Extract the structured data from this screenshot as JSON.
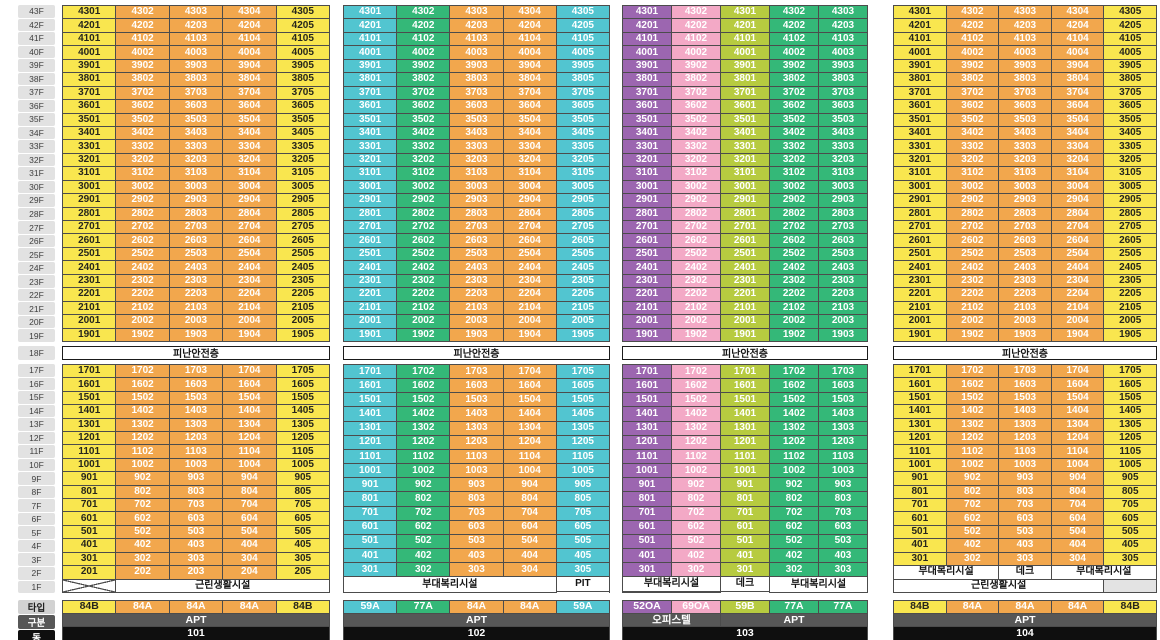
{
  "labels": {
    "refuge": "피난안전층"
  },
  "floor_axis": {
    "upper": [
      "43F",
      "42F",
      "41F",
      "40F",
      "39F",
      "38F",
      "37F",
      "36F",
      "35F",
      "34F",
      "33F",
      "32F",
      "31F",
      "30F",
      "29F",
      "28F",
      "27F",
      "26F",
      "25F",
      "24F",
      "23F",
      "22F",
      "21F",
      "20F",
      "19F"
    ],
    "refuge": "18F",
    "lower": [
      "17F",
      "16F",
      "15F",
      "14F",
      "13F",
      "12F",
      "11F",
      "10F",
      "9F",
      "8F",
      "7F",
      "6F",
      "5F",
      "4F",
      "3F",
      "2F",
      "1F"
    ],
    "legend": [
      "타입",
      "구분",
      "동"
    ]
  },
  "palette": {
    "yellow": {
      "bg": "#f9e64f",
      "fg": "#26261c"
    },
    "orange": {
      "bg": "#f2a74d",
      "fg": "#ffffff"
    },
    "teal": {
      "bg": "#52c5d0",
      "fg": "#ffffff"
    },
    "green": {
      "bg": "#34b878",
      "fg": "#ffffff"
    },
    "purple": {
      "bg": "#9c66b0",
      "fg": "#ffffff"
    },
    "pink": {
      "bg": "#f3a9c6",
      "fg": "#ffffff"
    },
    "lime": {
      "bg": "#b7cb40",
      "fg": "#ffffff"
    },
    "gubunBg": "#575757",
    "dongBg": "#0f0f0f"
  },
  "shared": {
    "rows_upper_std": [
      [
        "4301",
        "4302",
        "4303",
        "4304",
        "4305"
      ],
      [
        "4201",
        "4202",
        "4203",
        "4204",
        "4205"
      ],
      [
        "4101",
        "4102",
        "4103",
        "4104",
        "4105"
      ],
      [
        "4001",
        "4002",
        "4003",
        "4004",
        "4005"
      ],
      [
        "3901",
        "3902",
        "3903",
        "3904",
        "3905"
      ],
      [
        "3801",
        "3802",
        "3803",
        "3804",
        "3805"
      ],
      [
        "3701",
        "3702",
        "3703",
        "3704",
        "3705"
      ],
      [
        "3601",
        "3602",
        "3603",
        "3604",
        "3605"
      ],
      [
        "3501",
        "3502",
        "3503",
        "3504",
        "3505"
      ],
      [
        "3401",
        "3402",
        "3403",
        "3404",
        "3405"
      ],
      [
        "3301",
        "3302",
        "3303",
        "3304",
        "3305"
      ],
      [
        "3201",
        "3202",
        "3203",
        "3204",
        "3205"
      ],
      [
        "3101",
        "3102",
        "3103",
        "3104",
        "3105"
      ],
      [
        "3001",
        "3002",
        "3003",
        "3004",
        "3005"
      ],
      [
        "2901",
        "2902",
        "2903",
        "2904",
        "2905"
      ],
      [
        "2801",
        "2802",
        "2803",
        "2804",
        "2805"
      ],
      [
        "2701",
        "2702",
        "2703",
        "2704",
        "2705"
      ],
      [
        "2601",
        "2602",
        "2603",
        "2604",
        "2605"
      ],
      [
        "2501",
        "2502",
        "2503",
        "2504",
        "2505"
      ],
      [
        "2401",
        "2402",
        "2403",
        "2404",
        "2405"
      ],
      [
        "2301",
        "2302",
        "2303",
        "2304",
        "2305"
      ],
      [
        "2201",
        "2202",
        "2203",
        "2204",
        "2205"
      ],
      [
        "2101",
        "2102",
        "2103",
        "2104",
        "2105"
      ],
      [
        "2001",
        "2002",
        "2003",
        "2004",
        "2005"
      ],
      [
        "1901",
        "1902",
        "1903",
        "1904",
        "1905"
      ]
    ],
    "rows_lower_std": [
      [
        "1701",
        "1702",
        "1703",
        "1704",
        "1705"
      ],
      [
        "1601",
        "1602",
        "1603",
        "1604",
        "1605"
      ],
      [
        "1501",
        "1502",
        "1503",
        "1504",
        "1505"
      ],
      [
        "1401",
        "1402",
        "1403",
        "1404",
        "1405"
      ],
      [
        "1301",
        "1302",
        "1303",
        "1304",
        "1305"
      ],
      [
        "1201",
        "1202",
        "1203",
        "1204",
        "1205"
      ],
      [
        "1101",
        "1102",
        "1103",
        "1104",
        "1105"
      ],
      [
        "1001",
        "1002",
        "1003",
        "1004",
        "1005"
      ],
      [
        "901",
        "902",
        "903",
        "904",
        "905"
      ],
      [
        "801",
        "802",
        "803",
        "804",
        "805"
      ],
      [
        "701",
        "702",
        "703",
        "704",
        "705"
      ],
      [
        "601",
        "602",
        "603",
        "604",
        "605"
      ],
      [
        "501",
        "502",
        "503",
        "504",
        "505"
      ],
      [
        "401",
        "402",
        "403",
        "404",
        "405"
      ],
      [
        "301",
        "302",
        "303",
        "304",
        "305"
      ],
      [
        "201",
        "202",
        "203",
        "204",
        "205"
      ]
    ],
    "rows_upper_103": [
      [
        "4301",
        "4302",
        "4301",
        "4302",
        "4303"
      ],
      [
        "4201",
        "4202",
        "4201",
        "4202",
        "4203"
      ],
      [
        "4101",
        "4102",
        "4101",
        "4102",
        "4103"
      ],
      [
        "4001",
        "4002",
        "4001",
        "4002",
        "4003"
      ],
      [
        "3901",
        "3902",
        "3901",
        "3902",
        "3903"
      ],
      [
        "3801",
        "3802",
        "3801",
        "3802",
        "3803"
      ],
      [
        "3701",
        "3702",
        "3701",
        "3702",
        "3703"
      ],
      [
        "3601",
        "3602",
        "3601",
        "3602",
        "3603"
      ],
      [
        "3501",
        "3502",
        "3501",
        "3502",
        "3503"
      ],
      [
        "3401",
        "3402",
        "3401",
        "3402",
        "3403"
      ],
      [
        "3301",
        "3302",
        "3301",
        "3302",
        "3303"
      ],
      [
        "3201",
        "3202",
        "3201",
        "3202",
        "3203"
      ],
      [
        "3101",
        "3102",
        "3101",
        "3102",
        "3103"
      ],
      [
        "3001",
        "3002",
        "3001",
        "3002",
        "3003"
      ],
      [
        "2901",
        "2902",
        "2901",
        "2902",
        "2903"
      ],
      [
        "2801",
        "2802",
        "2801",
        "2802",
        "2803"
      ],
      [
        "2701",
        "2702",
        "2701",
        "2702",
        "2703"
      ],
      [
        "2601",
        "2602",
        "2601",
        "2602",
        "2603"
      ],
      [
        "2501",
        "2502",
        "2501",
        "2502",
        "2503"
      ],
      [
        "2401",
        "2402",
        "2401",
        "2402",
        "2403"
      ],
      [
        "2301",
        "2302",
        "2301",
        "2302",
        "2303"
      ],
      [
        "2201",
        "2202",
        "2201",
        "2202",
        "2203"
      ],
      [
        "2101",
        "2102",
        "2101",
        "2102",
        "2103"
      ],
      [
        "2001",
        "2002",
        "2001",
        "2002",
        "2003"
      ],
      [
        "1901",
        "1902",
        "1901",
        "1902",
        "1903"
      ]
    ],
    "rows_lower_103": [
      [
        "1701",
        "1702",
        "1701",
        "1702",
        "1703"
      ],
      [
        "1601",
        "1602",
        "1601",
        "1602",
        "1603"
      ],
      [
        "1501",
        "1502",
        "1501",
        "1502",
        "1503"
      ],
      [
        "1401",
        "1402",
        "1401",
        "1402",
        "1403"
      ],
      [
        "1301",
        "1302",
        "1301",
        "1302",
        "1303"
      ],
      [
        "1201",
        "1202",
        "1201",
        "1202",
        "1203"
      ],
      [
        "1101",
        "1102",
        "1101",
        "1102",
        "1103"
      ],
      [
        "1001",
        "1002",
        "1001",
        "1002",
        "1003"
      ],
      [
        "901",
        "902",
        "901",
        "902",
        "903"
      ],
      [
        "801",
        "802",
        "801",
        "802",
        "803"
      ],
      [
        "701",
        "702",
        "701",
        "702",
        "703"
      ],
      [
        "601",
        "602",
        "601",
        "602",
        "603"
      ],
      [
        "501",
        "502",
        "501",
        "502",
        "503"
      ],
      [
        "401",
        "402",
        "401",
        "402",
        "403"
      ],
      [
        "301",
        "302",
        "301",
        "302",
        "303"
      ]
    ]
  },
  "buildings": [
    {
      "dong": "101",
      "types": [
        "84B",
        "84A",
        "84A",
        "84A",
        "84B"
      ],
      "category_row": [
        {
          "label": "APT",
          "span": 5
        }
      ],
      "cols": [
        "yellow",
        "orange",
        "orange",
        "orange",
        "yellow"
      ],
      "upper_ref": "rows_upper_std",
      "lower_ref": "rows_lower_std",
      "lower_take": 16,
      "bottom": [
        [
          {
            "kind": "x",
            "span": 1
          },
          {
            "kind": "label",
            "text": "근린생활시설",
            "span": 4
          }
        ]
      ]
    },
    {
      "dong": "102",
      "types": [
        "59A",
        "77A",
        "84A",
        "84A",
        "59A"
      ],
      "category_row": [
        {
          "label": "APT",
          "span": 5
        }
      ],
      "cols": [
        "teal",
        "green",
        "orange",
        "orange",
        "teal"
      ],
      "upper_ref": "rows_upper_std",
      "lower_ref": "rows_lower_std",
      "lower_take": 15,
      "bottom": [
        [
          {
            "kind": "label",
            "text": "부대복리시설",
            "span": 4,
            "rowspan": 2
          },
          {
            "kind": "label",
            "text": "PIT",
            "span": 1
          }
        ],
        [
          {
            "kind": "x",
            "span": 1
          }
        ]
      ]
    },
    {
      "dong": "103",
      "types": [
        "52OA",
        "69OA",
        "59B",
        "77A",
        "77A"
      ],
      "category_row": [
        {
          "label": "오피스텔",
          "span": 2
        },
        {
          "label": "APT",
          "span": 3
        }
      ],
      "cols": [
        "purple",
        "pink",
        "lime",
        "green",
        "green"
      ],
      "upper_ref": "rows_upper_103",
      "lower_ref": "rows_lower_103",
      "lower_take": 15,
      "bottom": [
        [
          {
            "kind": "label",
            "text": "부대복리시설",
            "span": 2
          },
          {
            "kind": "label",
            "text": "데크",
            "span": 1
          },
          {
            "kind": "label",
            "text": "부대복리시설",
            "span": 2,
            "rowspan": 2
          }
        ],
        [
          {
            "kind": "gray",
            "span": 1
          },
          {
            "kind": "gray",
            "span": 1
          },
          {
            "kind": "x",
            "span": 1
          }
        ]
      ]
    },
    {
      "dong": "104",
      "types": [
        "84B",
        "84A",
        "84A",
        "84A",
        "84B"
      ],
      "category_row": [
        {
          "label": "APT",
          "span": 5
        }
      ],
      "cols": [
        "yellow",
        "orange",
        "orange",
        "orange",
        "yellow"
      ],
      "upper_ref": "rows_upper_std",
      "lower_ref": "rows_lower_std",
      "lower_take": 15,
      "bottom": [
        [
          {
            "kind": "label",
            "text": "부대복리시설",
            "span": 2
          },
          {
            "kind": "label",
            "text": "데크",
            "span": 1
          },
          {
            "kind": "label",
            "text": "부대복리시설",
            "span": 2
          }
        ],
        [
          {
            "kind": "label",
            "text": "근린생활시설",
            "span": 4
          },
          {
            "kind": "gray",
            "span": 1
          }
        ]
      ]
    }
  ]
}
